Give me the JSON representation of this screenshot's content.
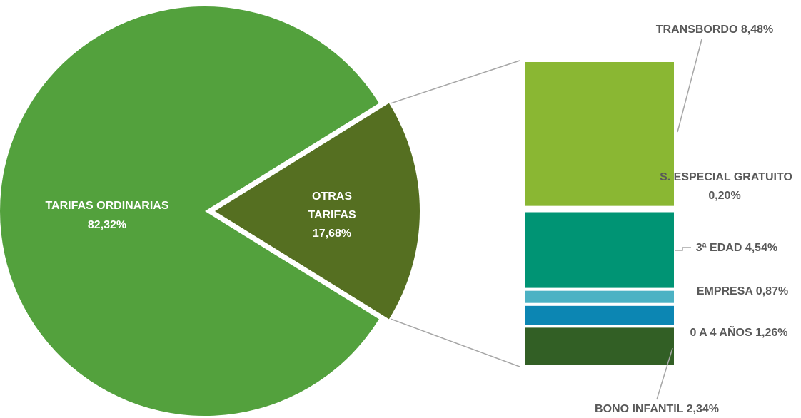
{
  "chart_data": {
    "type": "bar-of-pie",
    "pie": {
      "slices": [
        {
          "label": "TARIFAS ORDINARIAS",
          "value": 82.32,
          "value_text": "82,32%",
          "color": "#53A13D"
        },
        {
          "label": "OTRAS TARIFAS",
          "label_lines": [
            "OTRAS",
            "TARIFAS"
          ],
          "value": 17.68,
          "value_text": "17,68%",
          "color": "#556F21"
        }
      ]
    },
    "bar": {
      "segments": [
        {
          "label": "BONO INFANTIL",
          "value": 2.34,
          "value_text": "2,34%",
          "color": "#325F25"
        },
        {
          "label": "0 A 4 AÑOS",
          "value": 1.26,
          "value_text": "1,26%",
          "color": "#0C86B3"
        },
        {
          "label": "EMPRESA",
          "value": 0.87,
          "value_text": "0,87%",
          "color": "#4CB2C4"
        },
        {
          "label": "3ª EDAD",
          "value": 4.54,
          "value_text": "4,54%",
          "color": "#009474"
        },
        {
          "label": "S. ESPECIAL GRATUITO",
          "value": 0.2,
          "value_text": "0,20%",
          "color": "#ffffff"
        },
        {
          "label": "TRANSBORDO",
          "value": 8.48,
          "value_text": "8,48%",
          "color": "#8AB733"
        }
      ]
    },
    "connector_color": "#A6A6A6",
    "label_color": "#595959"
  }
}
